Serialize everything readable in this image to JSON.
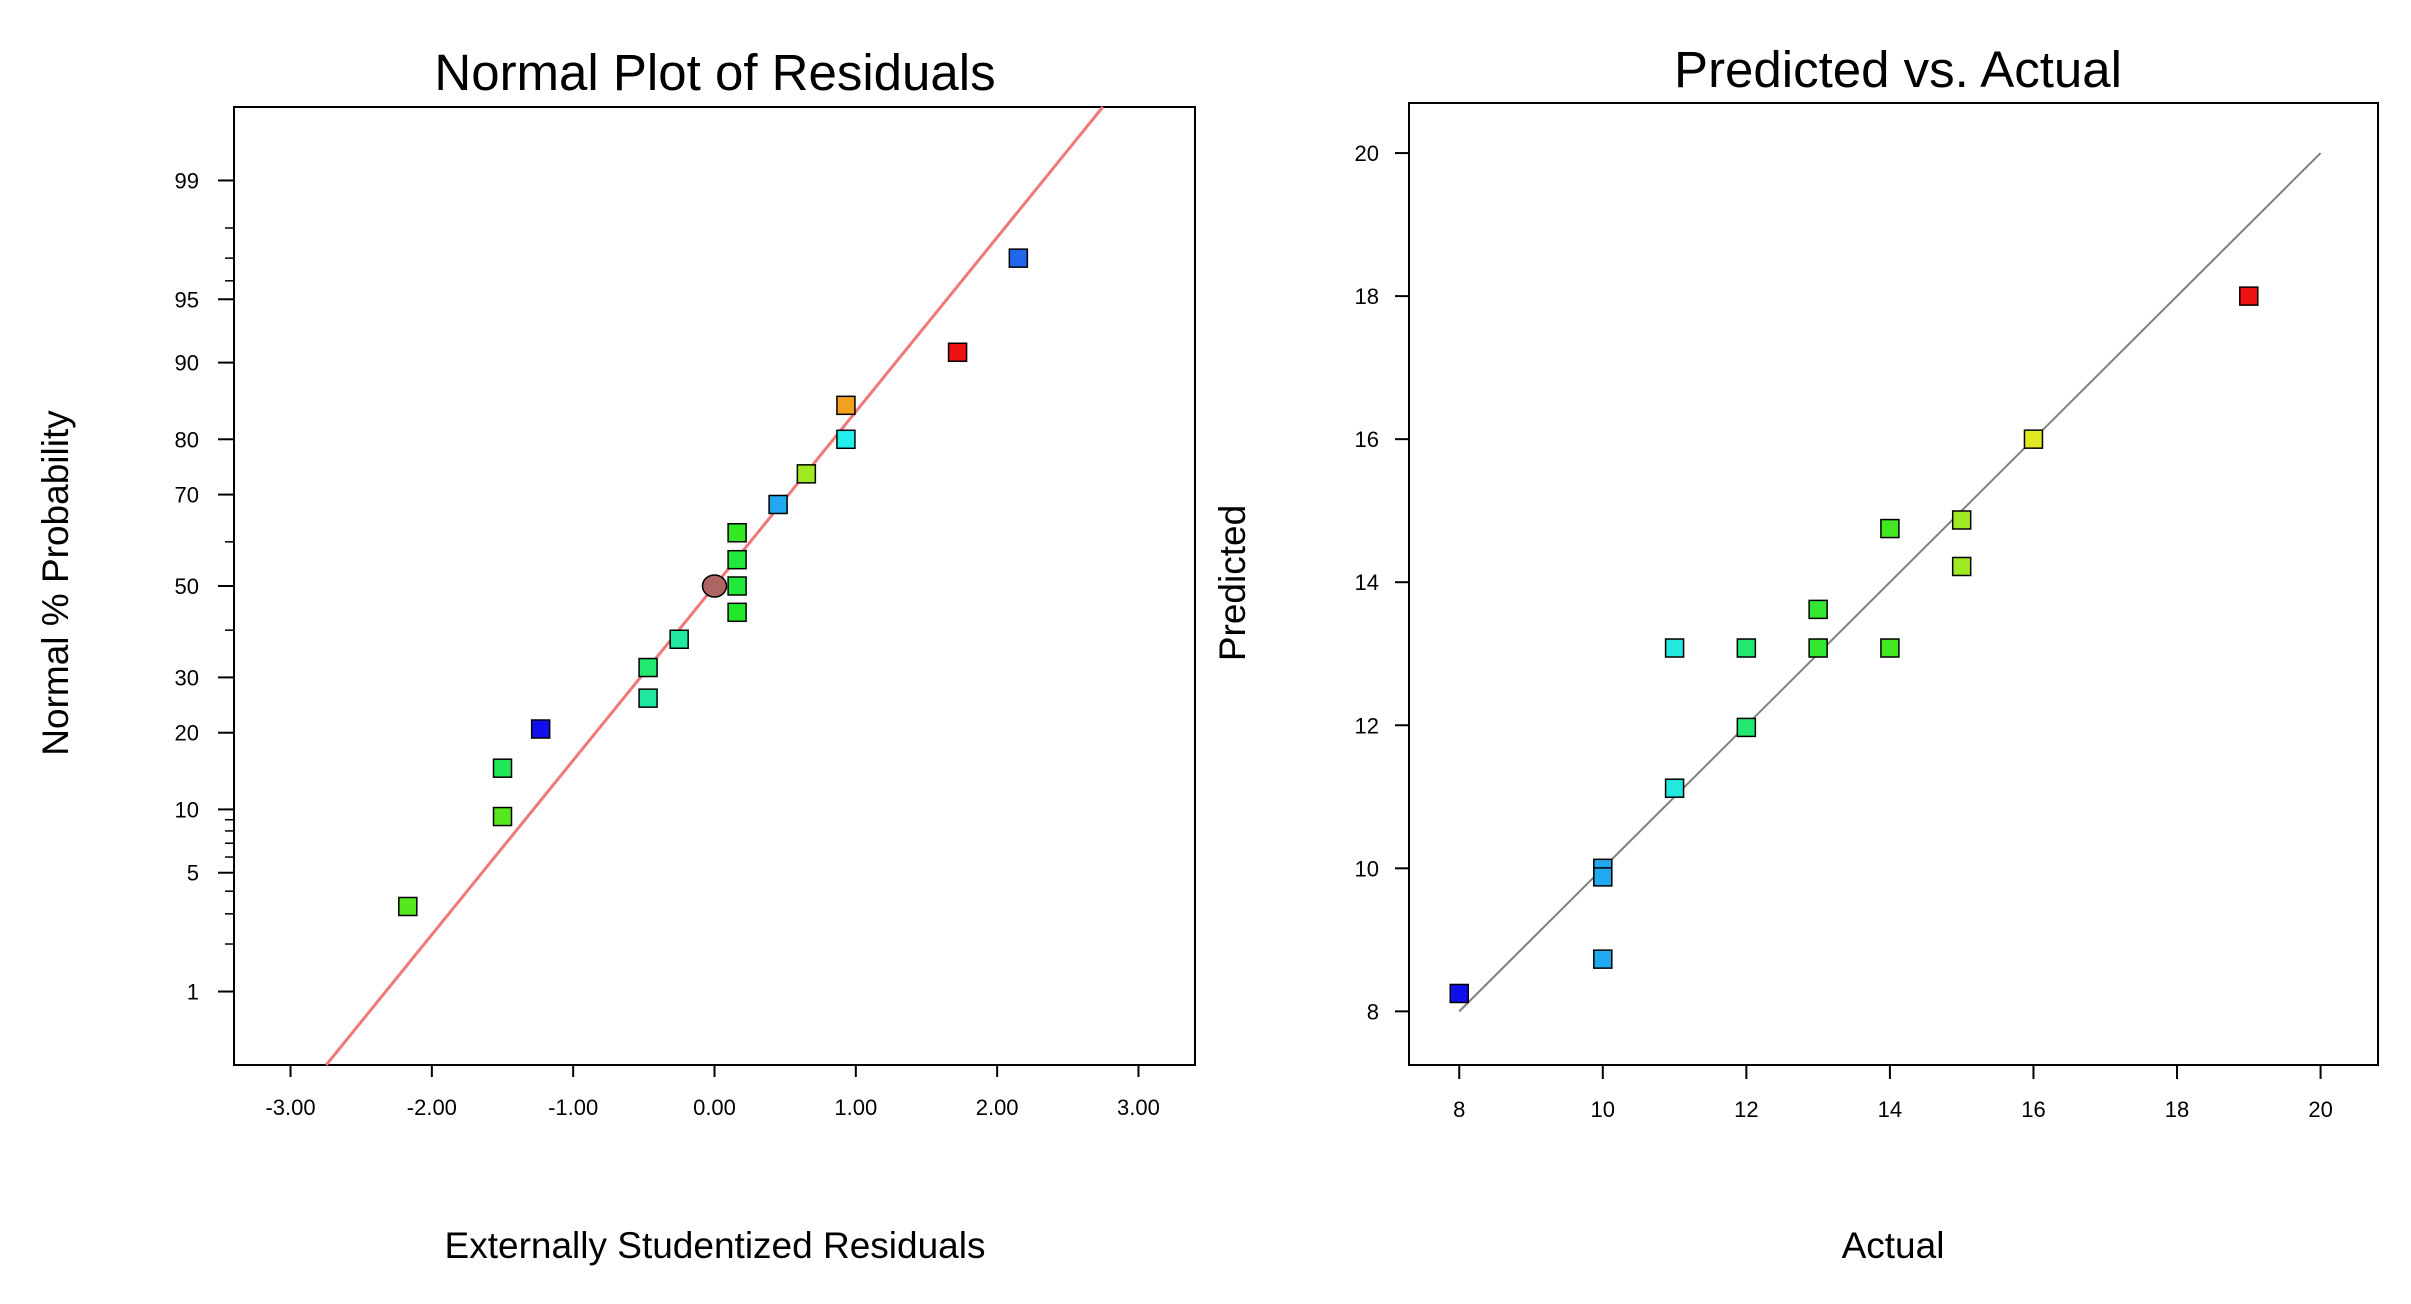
{
  "chart_data": [
    {
      "type": "scatter",
      "title": "Normal Plot of Residuals",
      "xlabel": "Externally Studentized Residuals",
      "ylabel": "Normal % Probability",
      "xlim": [
        -3.4,
        3.4
      ],
      "ylim_percent": [
        0.3,
        99.7
      ],
      "x_ticks": [
        "-3.00",
        "-2.00",
        "-1.00",
        "0.00",
        "1.00",
        "2.00",
        "3.00"
      ],
      "x_tick_values": [
        -3,
        -2,
        -1,
        0,
        1,
        2,
        3
      ],
      "y_ticks": [
        "1",
        "5",
        "10",
        "20",
        "30",
        "50",
        "70",
        "80",
        "90",
        "95",
        "99"
      ],
      "y_tick_values": [
        1,
        5,
        10,
        20,
        30,
        50,
        70,
        80,
        90,
        95,
        99
      ],
      "y_minor_ticks": [
        2,
        3,
        4,
        6,
        7,
        8,
        9,
        40,
        60,
        96,
        97,
        98
      ],
      "fit_line": {
        "color": "#f07878",
        "x_at_50": 0.0,
        "slope_per_z": 1.0
      },
      "points": [
        {
          "x": -2.17,
          "p": 3.3,
          "color": "#55e81c",
          "shape": "square"
        },
        {
          "x": -1.5,
          "p": 9.3,
          "color": "#55e81c",
          "shape": "square"
        },
        {
          "x": -1.5,
          "p": 14.8,
          "color": "#22e857",
          "shape": "square"
        },
        {
          "x": -1.23,
          "p": 20.6,
          "color": "#1010ee",
          "shape": "square"
        },
        {
          "x": -0.47,
          "p": 26.0,
          "color": "#20e8a0",
          "shape": "square"
        },
        {
          "x": -0.47,
          "p": 32.0,
          "color": "#22e870",
          "shape": "square"
        },
        {
          "x": -0.25,
          "p": 38.0,
          "color": "#22e8a0",
          "shape": "square"
        },
        {
          "x": 0.0,
          "p": 50.0,
          "color": "#b06565",
          "shape": "circle"
        },
        {
          "x": 0.16,
          "p": 44.0,
          "color": "#22e82a",
          "shape": "square"
        },
        {
          "x": 0.16,
          "p": 50.0,
          "color": "#22e83a",
          "shape": "square"
        },
        {
          "x": 0.16,
          "p": 56.0,
          "color": "#22e83a",
          "shape": "square"
        },
        {
          "x": 0.16,
          "p": 62.0,
          "color": "#33e822",
          "shape": "square"
        },
        {
          "x": 0.45,
          "p": 68.0,
          "color": "#22a8ee",
          "shape": "square"
        },
        {
          "x": 0.65,
          "p": 74.0,
          "color": "#a0e822",
          "shape": "square"
        },
        {
          "x": 0.93,
          "p": 80.0,
          "color": "#22eeee",
          "shape": "square"
        },
        {
          "x": 0.93,
          "p": 85.0,
          "color": "#f2a020",
          "shape": "square"
        },
        {
          "x": 1.72,
          "p": 91.0,
          "color": "#ee1111",
          "shape": "square"
        },
        {
          "x": 2.15,
          "p": 97.0,
          "color": "#2266ee",
          "shape": "square"
        }
      ]
    },
    {
      "type": "scatter",
      "title": "Predicted vs. Actual",
      "xlabel": "Actual",
      "ylabel": "Predicted",
      "xlim": [
        7.3,
        20.8
      ],
      "ylim": [
        7.25,
        20.7
      ],
      "x_ticks": [
        "8",
        "10",
        "12",
        "14",
        "16",
        "18",
        "20"
      ],
      "x_tick_values": [
        8,
        10,
        12,
        14,
        16,
        18,
        20
      ],
      "y_ticks": [
        "8",
        "10",
        "12",
        "14",
        "16",
        "18",
        "20"
      ],
      "y_tick_values": [
        8,
        10,
        12,
        14,
        16,
        18,
        20
      ],
      "reference_line": {
        "from": [
          8,
          8
        ],
        "to": [
          20,
          20
        ],
        "color": "#808080"
      },
      "points": [
        {
          "actual": 8,
          "predicted": 8.25,
          "color": "#1010ee"
        },
        {
          "actual": 10,
          "predicted": 10.0,
          "color": "#22a8ee"
        },
        {
          "actual": 10,
          "predicted": 9.88,
          "color": "#22a8ee"
        },
        {
          "actual": 10,
          "predicted": 8.73,
          "color": "#22a8ee"
        },
        {
          "actual": 11,
          "predicted": 13.08,
          "color": "#22e8dd"
        },
        {
          "actual": 11,
          "predicted": 11.12,
          "color": "#22e8dd"
        },
        {
          "actual": 12,
          "predicted": 13.08,
          "color": "#22e870"
        },
        {
          "actual": 12,
          "predicted": 11.97,
          "color": "#22e870"
        },
        {
          "actual": 13,
          "predicted": 13.62,
          "color": "#33e830"
        },
        {
          "actual": 13,
          "predicted": 13.08,
          "color": "#33e830"
        },
        {
          "actual": 14,
          "predicted": 14.75,
          "color": "#44e822"
        },
        {
          "actual": 14,
          "predicted": 13.08,
          "color": "#44e822"
        },
        {
          "actual": 15,
          "predicted": 14.87,
          "color": "#a0e822"
        },
        {
          "actual": 15,
          "predicted": 14.22,
          "color": "#a0e822"
        },
        {
          "actual": 16,
          "predicted": 16.0,
          "color": "#e0e822"
        },
        {
          "actual": 19,
          "predicted": 18.0,
          "color": "#ee1111"
        }
      ]
    }
  ]
}
